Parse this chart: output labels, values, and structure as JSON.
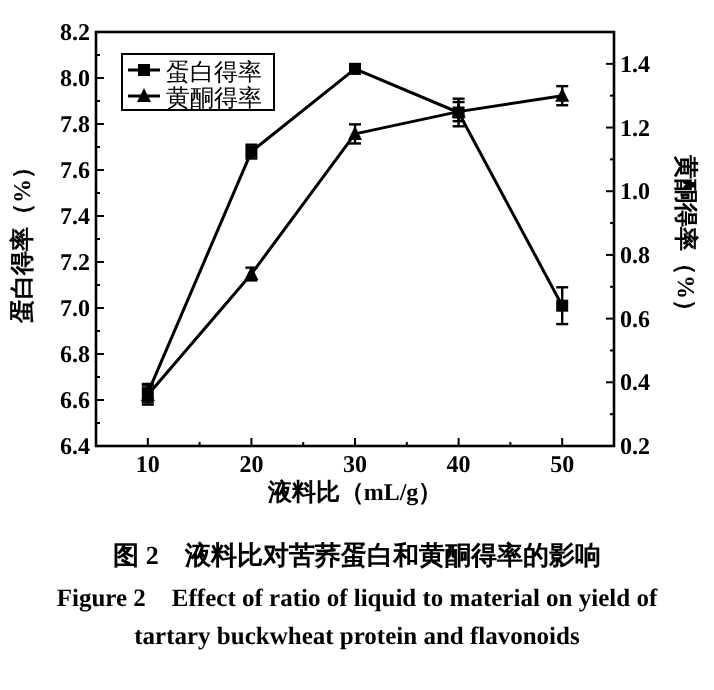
{
  "chart_data": {
    "type": "line",
    "xlabel": "液料比（mL/g）",
    "ylabel": "蛋白得率（%）",
    "y2label": "黄酮得率（%）",
    "x": [
      10,
      20,
      30,
      40,
      50
    ],
    "xlim": [
      5,
      55
    ],
    "xticks": [
      10,
      20,
      30,
      40,
      50
    ],
    "ylim": [
      6.4,
      8.2
    ],
    "yticks": [
      6.4,
      6.6,
      6.8,
      {
        "value": 7,
        "label": "7.0"
      },
      7.2,
      7.4,
      7.6,
      7.8,
      {
        "value": 8,
        "label": "8.0"
      },
      8.2
    ],
    "y2lim": [
      0.2,
      1.5
    ],
    "y2ticks": [
      0.2,
      0.4,
      0.6,
      0.8,
      {
        "value": 1,
        "label": "1.0"
      },
      1.2,
      1.4
    ],
    "series": [
      {
        "name": "蛋白得率",
        "color": "#000000",
        "marker": "square",
        "values": [
          6.63,
          7.68,
          8.04,
          7.85,
          7.01
        ],
        "errors": [
          0.04,
          0.03,
          0.02,
          0.06,
          0.08
        ]
      },
      {
        "name": "黄酮得率",
        "color": "#000000",
        "marker": "triangle",
        "axis": "y2",
        "values": [
          0.36,
          0.74,
          1.18,
          1.25,
          1.3
        ],
        "errors": [
          0.03,
          0.02,
          0.03,
          0.03,
          0.03
        ]
      }
    ],
    "legend": "top left",
    "grid": false,
    "line_style": "solid",
    "annotations": [
      "图 2　液料比对苦荞蛋白和黄酮得率的影响",
      "Figure 2　Effect of ratio of liquid to material on yield of tartary buckwheat protein and flavonoids"
    ]
  }
}
